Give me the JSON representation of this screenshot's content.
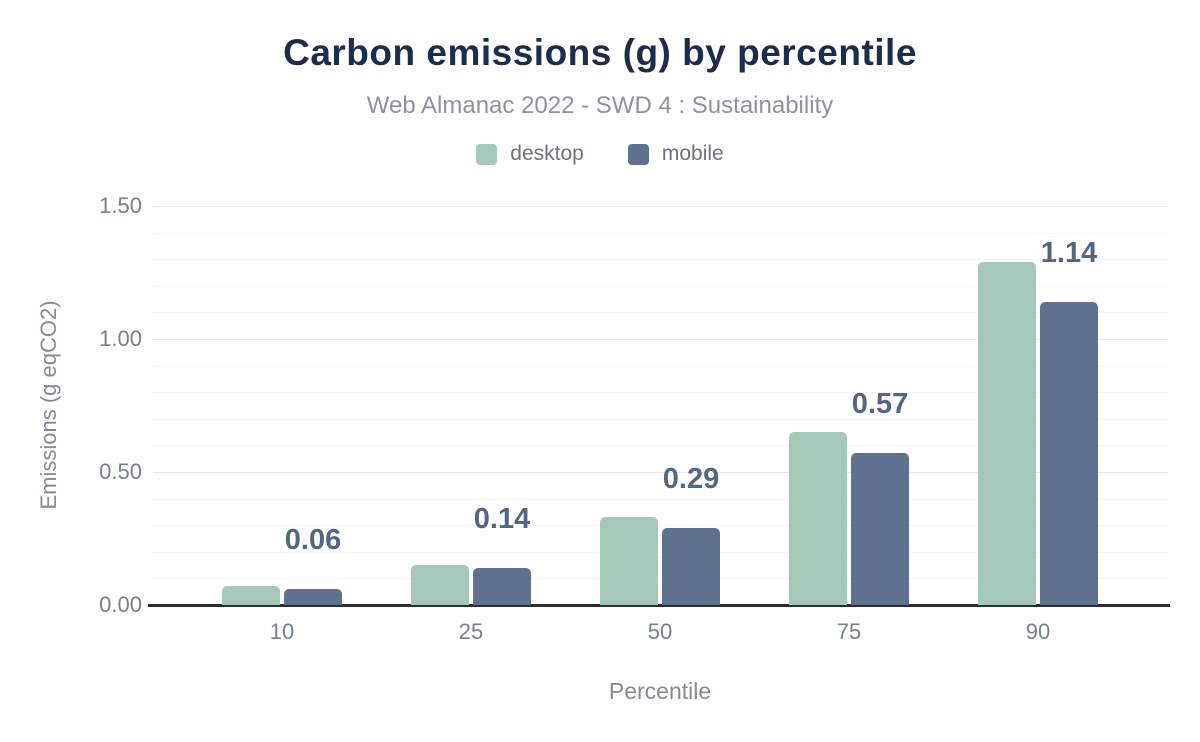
{
  "header": {
    "title": "Carbon emissions (g) by percentile",
    "subtitle": "Web Almanac 2022 - SWD 4 : Sustainability"
  },
  "legend": {
    "items": [
      {
        "label": "desktop",
        "color": "#a5c9b8"
      },
      {
        "label": "mobile",
        "color": "#5e7290"
      }
    ]
  },
  "chart_data": {
    "type": "bar",
    "title": "Carbon emissions (g) by percentile",
    "subtitle": "Web Almanac 2022 - SWD 4 : Sustainability",
    "categories": [
      "10",
      "25",
      "50",
      "75",
      "90"
    ],
    "series": [
      {
        "name": "desktop",
        "color": "#a5c9b8",
        "values": [
          0.07,
          0.15,
          0.33,
          0.65,
          1.29
        ]
      },
      {
        "name": "mobile",
        "color": "#5e7290",
        "values": [
          0.06,
          0.14,
          0.29,
          0.57,
          1.14
        ]
      }
    ],
    "bar_labels": {
      "series": "mobile",
      "values": [
        "0.06",
        "0.14",
        "0.29",
        "0.57",
        "1.14"
      ]
    },
    "xlabel": "Percentile",
    "ylabel": "Emissions (g eqCO2)",
    "ylim": [
      0,
      1.5
    ],
    "y_major_ticks": [
      0,
      0.5,
      1.0,
      1.5
    ],
    "y_tick_labels": [
      "0.00",
      "0.50",
      "1.00",
      "1.50"
    ],
    "y_minor_step": 0.1,
    "grid": true,
    "legend_position": "top",
    "colors": {
      "title": "#1d2b4d",
      "subtitle": "#8d939e",
      "tick_text": "#767f8c",
      "axis_title_text": "#848a94",
      "value_label": "#526689",
      "axis_line": "#2d2d2d",
      "grid_major": "#e6e8ec",
      "grid_minor": "#f4f5f7",
      "background": "#ffffff"
    }
  }
}
